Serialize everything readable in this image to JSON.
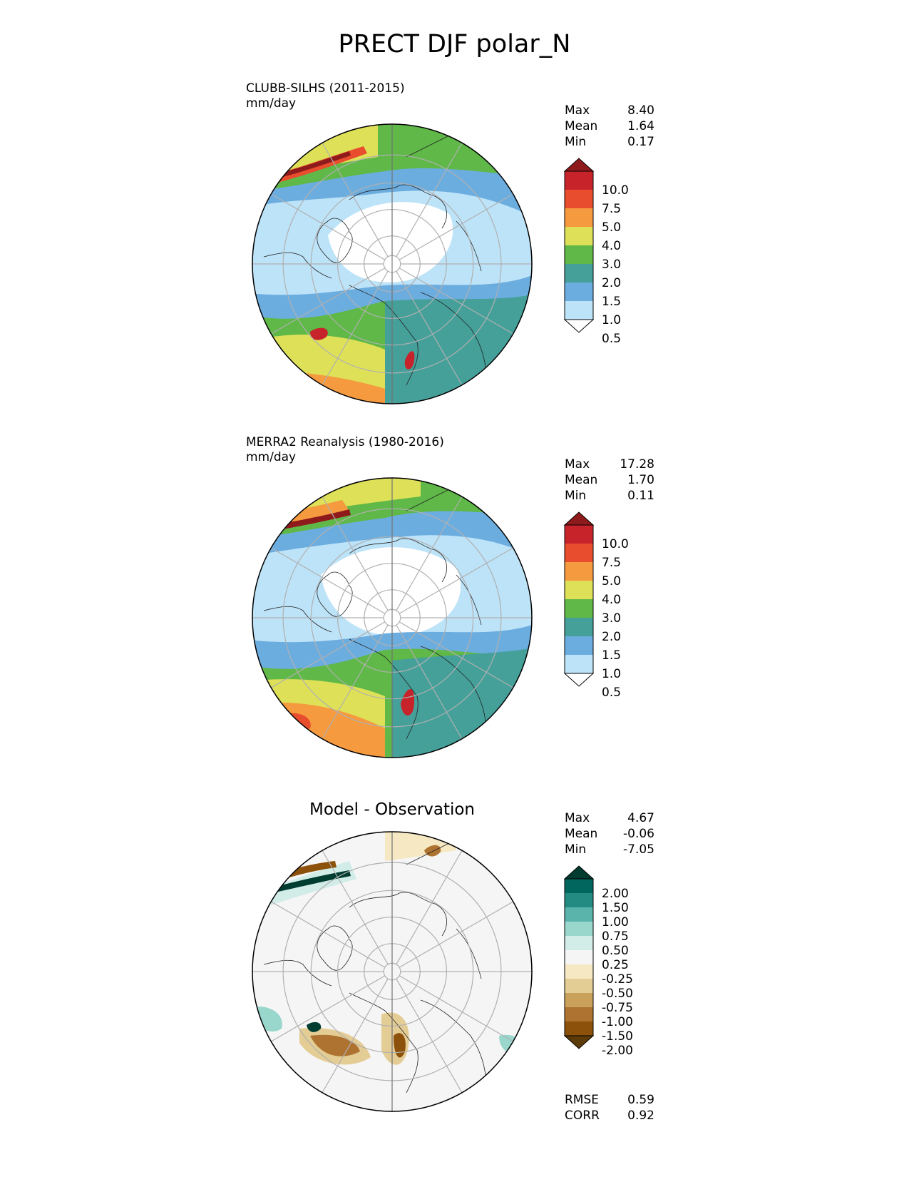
{
  "title": "PRECT DJF polar_N",
  "panels": [
    {
      "id": "test",
      "label_line1": "CLUBB-SILHS (2011-2015)",
      "label_line2": "mm/day",
      "stats": [
        {
          "name": "Max",
          "value": "8.40"
        },
        {
          "name": "Mean",
          "value": "1.64"
        },
        {
          "name": "Min",
          "value": "0.17"
        }
      ],
      "colorbar": {
        "labels": [
          "10.0",
          "7.5",
          "5.0",
          "4.0",
          "3.0",
          "2.0",
          "1.5",
          "1.0",
          "0.5"
        ],
        "colors": [
          "#8f1a1c",
          "#c7232a",
          "#e84d2e",
          "#f59a3e",
          "#dee158",
          "#5fb847",
          "#45a09a",
          "#6cade0",
          "#bde3f8",
          "#ffffff"
        ]
      }
    },
    {
      "id": "ref",
      "label_line1": "MERRA2 Reanalysis (1980-2016)",
      "label_line2": "mm/day",
      "stats": [
        {
          "name": "Max",
          "value": "17.28"
        },
        {
          "name": "Mean",
          "value": "1.70"
        },
        {
          "name": "Min",
          "value": "0.11"
        }
      ],
      "colorbar": {
        "labels": [
          "10.0",
          "7.5",
          "5.0",
          "4.0",
          "3.0",
          "2.0",
          "1.5",
          "1.0",
          "0.5"
        ],
        "colors": [
          "#8f1a1c",
          "#c7232a",
          "#e84d2e",
          "#f59a3e",
          "#dee158",
          "#5fb847",
          "#45a09a",
          "#6cade0",
          "#bde3f8",
          "#ffffff"
        ]
      }
    },
    {
      "id": "diff",
      "center_title": "Model - Observation",
      "stats": [
        {
          "name": "Max",
          "value": "4.67"
        },
        {
          "name": "Mean",
          "value": "-0.06"
        },
        {
          "name": "Min",
          "value": "-7.05"
        }
      ],
      "bottom_stats": [
        {
          "name": "RMSE",
          "value": "0.59"
        },
        {
          "name": "CORR",
          "value": "0.92"
        }
      ],
      "colorbar": {
        "labels": [
          "2.00",
          "1.50",
          "1.00",
          "0.75",
          "0.50",
          "0.25",
          "-0.25",
          "-0.50",
          "-0.75",
          "-1.00",
          "-1.50",
          "-2.00"
        ],
        "colors": [
          "#003c30",
          "#01665e",
          "#238b82",
          "#5ab4ac",
          "#99d6cb",
          "#d2ece7",
          "#f5f5f5",
          "#f6e8c3",
          "#e4cd94",
          "#c9a15a",
          "#ae7330",
          "#8c510a",
          "#5c3a0a"
        ]
      }
    }
  ]
}
